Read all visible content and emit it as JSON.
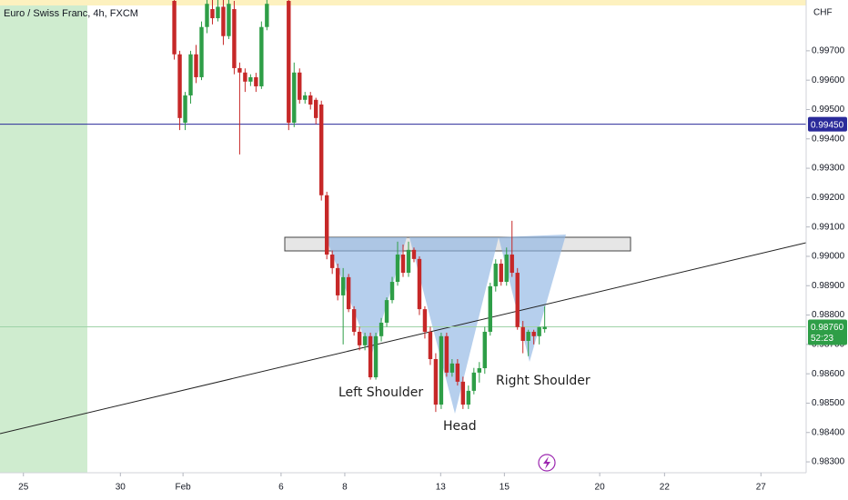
{
  "chart_data": {
    "type": "candlestick",
    "title": "Euro / Swiss Franc, 4h, FXCM",
    "currency": "CHF",
    "up_color": "#2e9e47",
    "down_color": "#c62828",
    "xlim": [
      0,
      148
    ],
    "ylim": [
      0.98263,
      0.99873
    ],
    "xticks": [
      {
        "value": 4.3,
        "label": "25"
      },
      {
        "value": 22.1,
        "label": "30"
      },
      {
        "value": 33.6,
        "label": "Feb"
      },
      {
        "value": 51.6,
        "label": "6"
      },
      {
        "value": 63.3,
        "label": "8"
      },
      {
        "value": 80.9,
        "label": "13"
      },
      {
        "value": 92.6,
        "label": "15"
      },
      {
        "value": 110.1,
        "label": "20"
      },
      {
        "value": 122.0,
        "label": "22"
      },
      {
        "value": 139.7,
        "label": "27"
      }
    ],
    "yticks": [
      {
        "value": 0.997,
        "label": "0.99700"
      },
      {
        "value": 0.996,
        "label": "0.99600"
      },
      {
        "value": 0.995,
        "label": "0.99500"
      },
      {
        "value": 0.994,
        "label": "0.99400"
      },
      {
        "value": 0.993,
        "label": "0.99300"
      },
      {
        "value": 0.992,
        "label": "0.99200"
      },
      {
        "value": 0.991,
        "label": "0.99100"
      },
      {
        "value": 0.99,
        "label": "0.99000"
      },
      {
        "value": 0.989,
        "label": "0.98900"
      },
      {
        "value": 0.988,
        "label": "0.98800"
      },
      {
        "value": 0.987,
        "label": "0.98700"
      },
      {
        "value": 0.986,
        "label": "0.98600"
      },
      {
        "value": 0.985,
        "label": "0.98500"
      },
      {
        "value": 0.984,
        "label": "0.98400"
      },
      {
        "value": 0.983,
        "label": "0.98300"
      }
    ],
    "hline": {
      "value": 0.9945,
      "label": "0.99450",
      "color": "#2a2a9a"
    },
    "last_price": {
      "value": 0.9876,
      "label": "0.98760",
      "countdown": "52:23",
      "color": "#2e9e47"
    },
    "annotations": [
      "Left Shoulder",
      "Head",
      "Right Shoulder"
    ],
    "x": [
      32,
      33,
      34,
      35,
      36,
      37,
      38,
      39,
      40,
      41,
      42,
      43,
      44,
      45,
      46,
      47,
      48,
      49,
      53,
      54,
      55,
      56,
      57,
      58,
      59,
      60,
      61,
      62,
      63,
      64,
      65,
      66,
      67,
      68,
      69,
      70,
      71,
      72,
      73,
      74,
      75,
      76,
      77,
      78,
      79,
      80,
      81,
      82,
      83,
      84,
      85,
      86,
      87,
      88,
      89,
      90,
      91,
      92,
      93,
      94,
      95,
      96,
      97,
      98,
      99,
      100
    ],
    "open": [
      0.9987,
      0.99688,
      0.99455,
      0.99548,
      0.99688,
      0.9961,
      0.99781,
      0.99842,
      0.99811,
      0.9985,
      0.9975,
      0.99842,
      0.99641,
      0.99626,
      0.99595,
      0.9961,
      0.99579,
      0.99781,
      0.9987,
      0.99455,
      0.99626,
      0.99533,
      0.99548,
      0.99533,
      0.99517,
      0.99208,
      0.99006,
      0.9896,
      0.98867,
      0.98929,
      0.9882,
      0.98743,
      0.98697,
      0.98728,
      0.98588,
      0.98728,
      0.98774,
      0.98851,
      0.98913,
      0.99006,
      0.98944,
      0.99022,
      0.98991,
      0.9882,
      0.98743,
      0.9865,
      0.98495,
      0.98728,
      0.98604,
      0.98635,
      0.98573,
      0.98495,
      0.98542,
      0.98604,
      0.98619,
      0.98743,
      0.98898,
      0.98975,
      0.98913,
      0.99006,
      0.98944,
      0.98759,
      0.98712,
      0.98743,
      0.98728,
      0.98752
    ],
    "high": [
      0.99873,
      0.997,
      0.9956,
      0.997,
      0.9972,
      0.998,
      0.99873,
      0.99873,
      0.99873,
      0.99873,
      0.99873,
      0.9987,
      0.9966,
      0.9964,
      0.9962,
      0.99625,
      0.998,
      0.99873,
      0.99873,
      0.9966,
      0.9964,
      0.9956,
      0.9956,
      0.9954,
      0.9953,
      0.9922,
      0.9902,
      0.98975,
      0.9896,
      0.9894,
      0.9883,
      0.9876,
      0.9874,
      0.9874,
      0.9874,
      0.9879,
      0.9886,
      0.9893,
      0.9905,
      0.9904,
      0.9905,
      0.9903,
      0.99,
      0.9883,
      0.9876,
      0.9867,
      0.9874,
      0.9874,
      0.9865,
      0.9865,
      0.9859,
      0.9856,
      0.9862,
      0.9864,
      0.9876,
      0.9891,
      0.9899,
      0.9899,
      0.9903,
      0.99121,
      0.9896,
      0.9878,
      0.9875,
      0.9875,
      0.9876,
      0.9883
    ],
    "low": [
      0.9967,
      0.9943,
      0.9943,
      0.9952,
      0.9959,
      0.996,
      0.9976,
      0.9979,
      0.998,
      0.9972,
      0.9974,
      0.9962,
      0.99347,
      0.9956,
      0.9958,
      0.9956,
      0.9957,
      0.9977,
      0.9943,
      0.9944,
      0.9952,
      0.9952,
      0.995,
      0.9945,
      0.9919,
      0.9899,
      0.9894,
      0.9885,
      0.987,
      0.9881,
      0.9873,
      0.9868,
      0.9868,
      0.9858,
      0.9858,
      0.9871,
      0.9876,
      0.9884,
      0.989,
      0.9893,
      0.9893,
      0.9898,
      0.988,
      0.9872,
      0.9863,
      0.9847,
      0.9848,
      0.9859,
      0.9859,
      0.9856,
      0.9848,
      0.9848,
      0.9853,
      0.9857,
      0.986,
      0.9873,
      0.9888,
      0.989,
      0.989,
      0.9893,
      0.9875,
      0.9867,
      0.9866,
      0.987,
      0.987,
      0.9874
    ],
    "close": [
      0.99688,
      0.99471,
      0.99548,
      0.99688,
      0.9961,
      0.99781,
      0.9986,
      0.99811,
      0.9985,
      0.9975,
      0.9986,
      0.99641,
      0.99626,
      0.99595,
      0.9961,
      0.99579,
      0.99781,
      0.9986,
      0.99455,
      0.99626,
      0.99533,
      0.99548,
      0.99517,
      0.99471,
      0.99208,
      0.99006,
      0.9896,
      0.98867,
      0.98929,
      0.9882,
      0.98743,
      0.98697,
      0.98728,
      0.98588,
      0.98728,
      0.98774,
      0.98851,
      0.98913,
      0.99006,
      0.98944,
      0.99022,
      0.98991,
      0.9882,
      0.98743,
      0.9865,
      0.98495,
      0.98728,
      0.98604,
      0.98635,
      0.98573,
      0.98495,
      0.98542,
      0.98604,
      0.98619,
      0.98743,
      0.98898,
      0.98975,
      0.98913,
      0.99006,
      0.98944,
      0.98759,
      0.98712,
      0.98743,
      0.98728,
      0.98759,
      0.9876
    ]
  }
}
